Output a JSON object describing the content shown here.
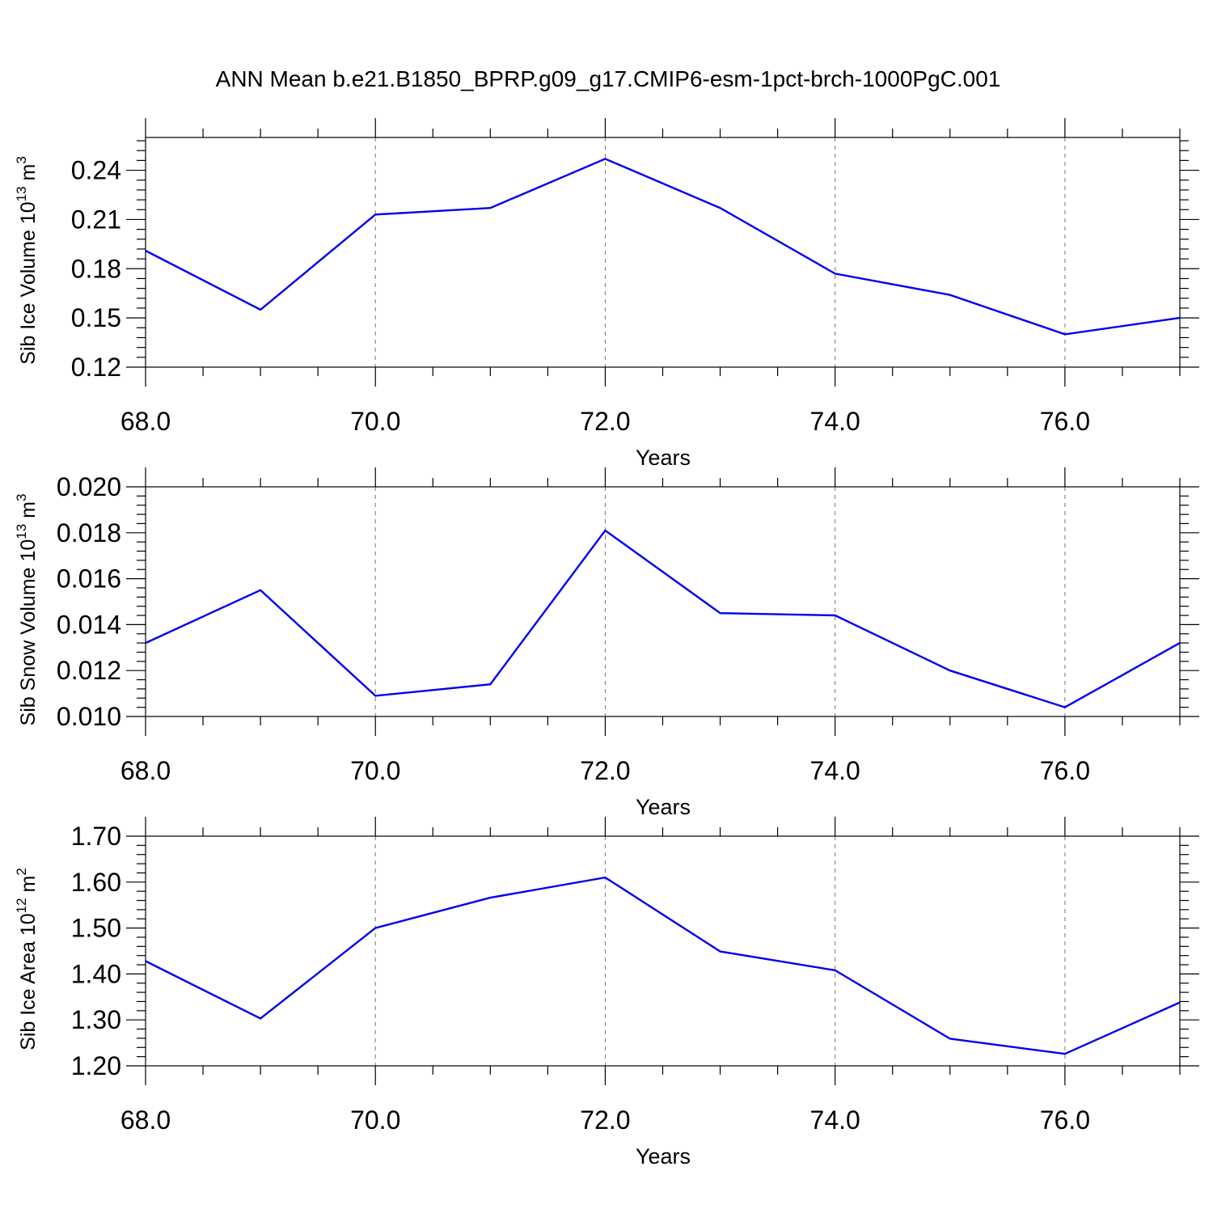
{
  "figure": {
    "title": "ANN Mean b.e21.B1850_BPRP.g09_g17.CMIP6-esm-1pct-brch-1000PgC.001",
    "line_color": "#0000ee"
  },
  "chart_data": [
    {
      "type": "line",
      "xlabel": "Years",
      "ylabel_main": "Sib Ice Volume 10",
      "ylabel_exp": "13",
      "ylabel_unit": " m",
      "ylabel_unit_exp": "3",
      "xlim": [
        68,
        77
      ],
      "ylim": [
        0.12,
        0.26
      ],
      "x_ticks": [
        68,
        70,
        72,
        74,
        76
      ],
      "x_tick_labels": [
        "68.0",
        "70.0",
        "72.0",
        "74.0",
        "76.0"
      ],
      "x_minor_step": 0.5,
      "y_ticks": [
        0.12,
        0.15,
        0.18,
        0.21,
        0.24
      ],
      "y_tick_labels": [
        "0.12",
        "0.15",
        "0.18",
        "0.21",
        "0.24"
      ],
      "y_minor_step": 0.006,
      "grid": "vertical dashed at major x ticks",
      "x": [
        68,
        69,
        70,
        71,
        72,
        73,
        74,
        75,
        76,
        77
      ],
      "values": [
        0.191,
        0.155,
        0.213,
        0.217,
        0.247,
        0.217,
        0.177,
        0.164,
        0.14,
        0.15
      ]
    },
    {
      "type": "line",
      "xlabel": "Years",
      "ylabel_main": "Sib Snow Volume 10",
      "ylabel_exp": "13",
      "ylabel_unit": " m",
      "ylabel_unit_exp": "3",
      "xlim": [
        68,
        77
      ],
      "ylim": [
        0.01,
        0.02
      ],
      "x_ticks": [
        68,
        70,
        72,
        74,
        76
      ],
      "x_tick_labels": [
        "68.0",
        "70.0",
        "72.0",
        "74.0",
        "76.0"
      ],
      "x_minor_step": 0.5,
      "y_ticks": [
        0.01,
        0.012,
        0.014,
        0.016,
        0.018,
        0.02
      ],
      "y_tick_labels": [
        "0.010",
        "0.012",
        "0.014",
        "0.016",
        "0.018",
        "0.020"
      ],
      "y_minor_step": 0.0004,
      "grid": "vertical dashed at major x ticks",
      "x": [
        68,
        69,
        70,
        71,
        72,
        73,
        74,
        75,
        76,
        77
      ],
      "values": [
        0.0132,
        0.0155,
        0.0109,
        0.0114,
        0.0181,
        0.0145,
        0.0144,
        0.012,
        0.0104,
        0.0132
      ]
    },
    {
      "type": "line",
      "xlabel": "Years",
      "ylabel_main": "Sib Ice Area 10",
      "ylabel_exp": "12",
      "ylabel_unit": " m",
      "ylabel_unit_exp": "2",
      "xlim": [
        68,
        77
      ],
      "ylim": [
        1.2,
        1.7
      ],
      "x_ticks": [
        68,
        70,
        72,
        74,
        76
      ],
      "x_tick_labels": [
        "68.0",
        "70.0",
        "72.0",
        "74.0",
        "76.0"
      ],
      "x_minor_step": 0.5,
      "y_ticks": [
        1.2,
        1.3,
        1.4,
        1.5,
        1.6,
        1.7
      ],
      "y_tick_labels": [
        "1.20",
        "1.30",
        "1.40",
        "1.50",
        "1.60",
        "1.70"
      ],
      "y_minor_step": 0.02,
      "grid": "vertical dashed at major x ticks",
      "x": [
        68,
        69,
        70,
        71,
        72,
        73,
        74,
        75,
        76,
        77
      ],
      "values": [
        1.428,
        1.303,
        1.5,
        1.566,
        1.61,
        1.449,
        1.408,
        1.259,
        1.226,
        1.338
      ]
    }
  ]
}
